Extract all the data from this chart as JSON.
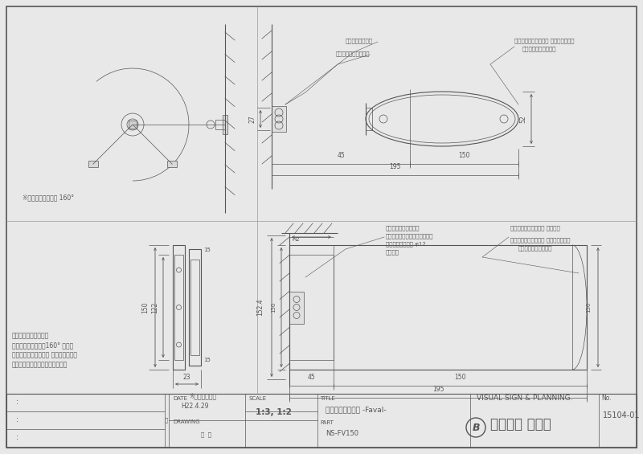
{
  "bg_color": "#e8e8e8",
  "paper_color": "#f5f5f5",
  "line_color": "#555555",
  "lc_dark": "#333333",
  "title_block": {
    "date": "H22.4.29",
    "scale": "1:3, 1:2",
    "title_text": "アルミ楕円室名札 -Faval-",
    "part": "NS-FV150",
    "visual": "VISUAL SIGN & PLANNING.",
    "no": "15104-01"
  },
  "note_swing": "※スイング可能角度 160°",
  "note_screw": "※取付ビス位置",
  "ann_spring": "スプリング可動式",
  "ann_frame_top": "フレーム：アルミ型材",
  "ann_hyoji_top1": "表示基板：アルミ型材 アルマイト仕上",
  "ann_hyoji_top2": "カッティングシート貼",
  "ann_frame_r": "フレーム：アルミ型材",
  "ann_swing_r": "スイング式（スプリング可動）",
  "ann_steel": "ステールキャップ φ12",
  "ann_yaki": "焼付塗装",
  "ann_cap": "キャップ：樿山形成品 進洗仕上",
  "ann_hyoji_r1": "表示基板：アルミ型材 アルマイト仕上",
  "ann_hyoji_r2": "カッティングシート貼",
  "left_note1": "フレーム：アルミ型材",
  "left_note2": "スプリングスイング160° 可動式",
  "left_note3": "表示基板：アルミ型材 アルマイト仕上",
  "left_note4": "表示方法：カッティングシート貼"
}
